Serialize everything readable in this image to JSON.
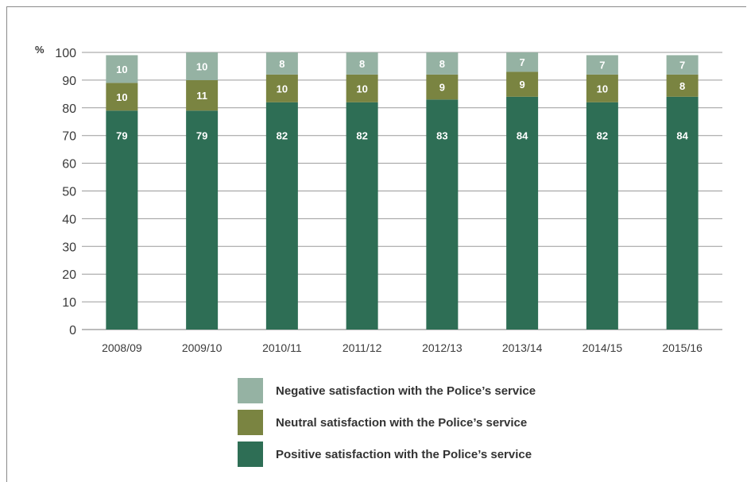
{
  "chart_data": {
    "type": "bar",
    "stacked": true,
    "y_unit": "%",
    "ylim": [
      0,
      100
    ],
    "yticks": [
      0,
      10,
      20,
      30,
      40,
      50,
      60,
      70,
      80,
      90,
      100
    ],
    "grid": true,
    "legend_position": "bottom",
    "categories": [
      "2008/09",
      "2009/10",
      "2010/11",
      "2011/12",
      "2012/13",
      "2013/14",
      "2014/15",
      "2015/16"
    ],
    "series": [
      {
        "name": "Positive satisfaction with the Police’s service",
        "color": "#2e6e55",
        "values": [
          79,
          79,
          82,
          82,
          83,
          84,
          82,
          84
        ]
      },
      {
        "name": "Neutral satisfaction with the Police’s service",
        "color": "#7a8441",
        "values": [
          10,
          11,
          10,
          10,
          9,
          9,
          10,
          8
        ]
      },
      {
        "name": "Negative satisfaction with the Police’s service",
        "color": "#95b2a3",
        "values": [
          10,
          10,
          8,
          8,
          8,
          7,
          7,
          7
        ]
      }
    ],
    "legend_order": [
      2,
      1,
      0
    ]
  }
}
